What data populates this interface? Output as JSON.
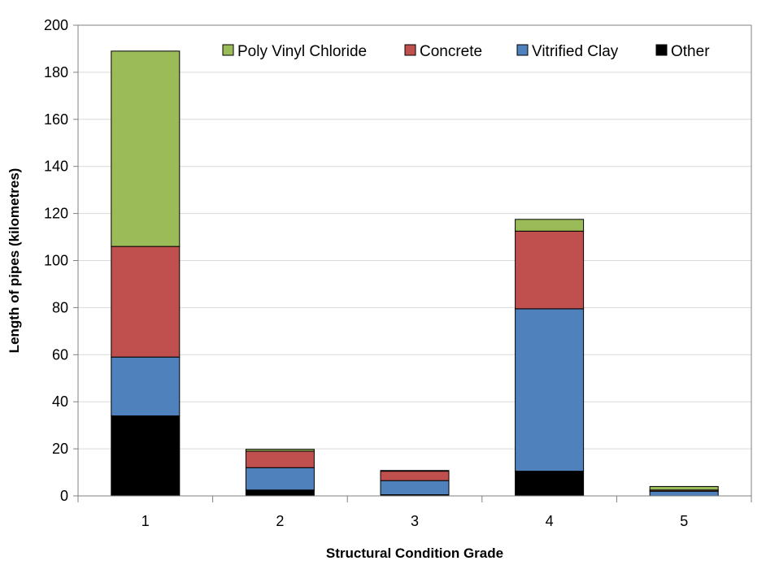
{
  "chart_data": {
    "type": "bar",
    "stacked": true,
    "title": "",
    "xlabel": "Structural Condition Grade",
    "ylabel": "Length of pipes (kilometres)",
    "categories": [
      "1",
      "2",
      "3",
      "4",
      "5"
    ],
    "ylim": [
      0,
      200
    ],
    "yticks": [
      0,
      20,
      40,
      60,
      80,
      100,
      120,
      140,
      160,
      180,
      200
    ],
    "grid": true,
    "legend_position": "top",
    "series": [
      {
        "name": "Other",
        "color": "#000000",
        "values": [
          34,
          2.5,
          0.5,
          10.5,
          0
        ]
      },
      {
        "name": "Vitrified Clay",
        "color": "#4F81BD",
        "values": [
          25,
          9.5,
          6,
          69,
          2
        ]
      },
      {
        "name": "Concrete",
        "color": "#C0504D",
        "values": [
          47,
          7,
          4,
          33,
          0.5
        ]
      },
      {
        "name": "Poly Vinyl Chloride",
        "color": "#9BBB59",
        "values": [
          83,
          0.8,
          0.3,
          5,
          1.5
        ]
      }
    ],
    "legend_order": [
      "Poly Vinyl Chloride",
      "Concrete",
      "Vitrified Clay",
      "Other"
    ]
  }
}
